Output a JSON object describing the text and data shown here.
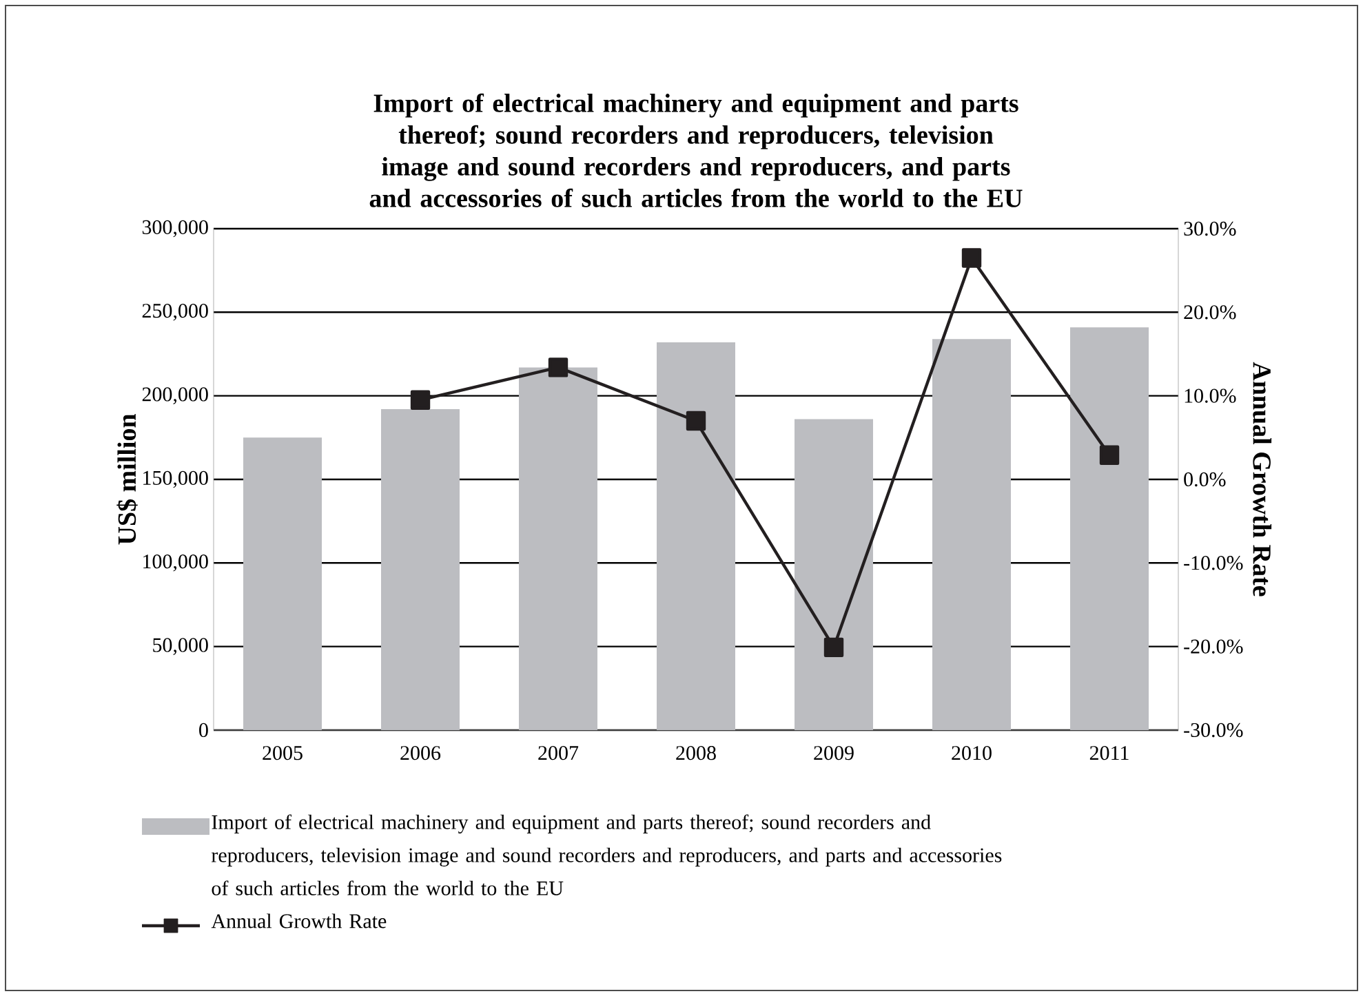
{
  "chart_data": {
    "type": "bar",
    "title": "Import of electrical machinery and equipment and parts thereof; sound recorders and reproducers, television image and sound recorders and reproducers, and parts and accessories of such articles from the world to the EU",
    "categories": [
      "2005",
      "2006",
      "2007",
      "2008",
      "2009",
      "2010",
      "2011"
    ],
    "series": [
      {
        "name": "Import of electrical machinery and equipment and parts thereof; sound recorders and reproducers, television image and sound recorders and reproducers, and parts and accessories of such articles from the world to the EU",
        "color": "#bcbdc1",
        "values": [
          175000,
          192000,
          217000,
          232000,
          186000,
          234000,
          241000
        ]
      },
      {
        "name": "Annual Growth Rate",
        "type": "line",
        "axis": "y2",
        "color": "#231f20",
        "marker": "square",
        "values": [
          null,
          9.5,
          13.4,
          7.0,
          -20.1,
          26.5,
          2.9
        ]
      }
    ],
    "ylabel": "US$ million",
    "y2label": "Annual Growth Rate",
    "ylim": [
      0,
      300000
    ],
    "yticks": [
      0,
      {
        "value": 50000,
        "label": "50,000"
      },
      {
        "value": 100000,
        "label": "100,000"
      },
      {
        "value": 150000,
        "label": "150,000"
      },
      {
        "value": 200000,
        "label": "200,000"
      },
      {
        "value": 250000,
        "label": "250,000"
      },
      {
        "value": 300000,
        "label": "300,000"
      }
    ],
    "y2lim": [
      -30,
      30
    ],
    "y2ticks": [
      {
        "value": -30,
        "label": "-30.0%"
      },
      {
        "value": -20,
        "label": "-20.0%"
      },
      {
        "value": -10,
        "label": "-10.0%"
      },
      {
        "value": 0,
        "label": "0.0%"
      },
      {
        "value": 10,
        "label": "10.0%"
      },
      {
        "value": 20,
        "label": "20.0%"
      },
      {
        "value": 30,
        "label": "30.0%"
      }
    ],
    "grid": "y",
    "legend": "bottom"
  }
}
